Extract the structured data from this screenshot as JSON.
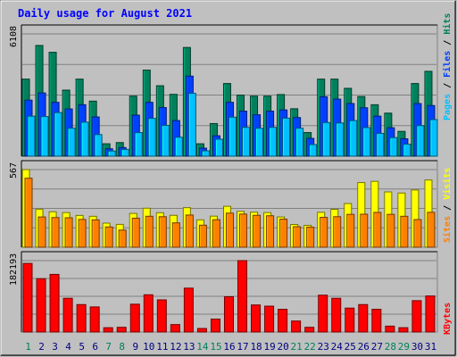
{
  "chart_data": [
    {
      "type": "bar",
      "title": "Daily usage for August 2021",
      "ymax_label": "6108",
      "ymax": 6108,
      "legend": [
        {
          "text": "Hits",
          "color": "#00805c"
        },
        {
          "text": "Files",
          "color": "#0040ff"
        },
        {
          "text": "Pages",
          "color": "#00c0ff"
        }
      ],
      "categories": [
        "1",
        "2",
        "3",
        "4",
        "5",
        "6",
        "7",
        "8",
        "9",
        "10",
        "11",
        "12",
        "13",
        "14",
        "15",
        "16",
        "17",
        "18",
        "19",
        "20",
        "21",
        "22",
        "23",
        "24",
        "25",
        "26",
        "27",
        "28",
        "29",
        "30",
        "31"
      ],
      "weekend_days": [
        "1",
        "7",
        "8",
        "14",
        "15",
        "21",
        "22",
        "28",
        "29"
      ],
      "series": [
        {
          "name": "Hits",
          "color": "#00805c",
          "values": [
            3850,
            5530,
            5190,
            3300,
            3850,
            2750,
            620,
            680,
            3000,
            4300,
            3520,
            3090,
            5430,
            620,
            1630,
            3630,
            3050,
            3000,
            3000,
            3080,
            2370,
            1180,
            3850,
            3850,
            3390,
            2980,
            2570,
            2150,
            1240,
            3630,
            4240
          ]
        },
        {
          "name": "Files",
          "color": "#0040ff",
          "values": [
            2800,
            3160,
            2690,
            2360,
            2570,
            1960,
            370,
            430,
            2050,
            2690,
            2430,
            1780,
            4000,
            400,
            1020,
            2690,
            2250,
            2070,
            2250,
            2310,
            1930,
            890,
            2970,
            2850,
            2630,
            2420,
            2000,
            1420,
            870,
            2630,
            2530
          ]
        },
        {
          "name": "Pages",
          "color": "#00c0ff",
          "values": [
            2000,
            1980,
            2180,
            1400,
            1700,
            1080,
            260,
            340,
            1180,
            1890,
            1540,
            950,
            3140,
            270,
            850,
            1950,
            1440,
            1400,
            1440,
            1900,
            1400,
            580,
            1680,
            1660,
            1780,
            1430,
            1140,
            930,
            600,
            1530,
            1830
          ]
        }
      ]
    },
    {
      "type": "bar",
      "ymax_label": "567",
      "ymax": 567,
      "legend": [
        {
          "text": "Visits",
          "color": "#ffff00"
        },
        {
          "text": "Sites",
          "color": "#ff8000"
        }
      ],
      "categories": [
        "1",
        "2",
        "3",
        "4",
        "5",
        "6",
        "7",
        "8",
        "9",
        "10",
        "11",
        "12",
        "13",
        "14",
        "15",
        "16",
        "17",
        "18",
        "19",
        "20",
        "21",
        "22",
        "23",
        "24",
        "25",
        "26",
        "27",
        "28",
        "29",
        "30",
        "31"
      ],
      "series": [
        {
          "name": "Visits",
          "color": "#ffff00",
          "values": [
            567,
            278,
            259,
            253,
            232,
            226,
            176,
            167,
            247,
            285,
            252,
            233,
            289,
            200,
            227,
            299,
            262,
            256,
            253,
            221,
            166,
            160,
            255,
            277,
            319,
            472,
            481,
            404,
            396,
            418,
            491
          ]
        },
        {
          "name": "Sites",
          "color": "#ff8000",
          "values": [
            504,
            221,
            217,
            215,
            203,
            200,
            148,
            125,
            212,
            226,
            223,
            178,
            235,
            161,
            201,
            249,
            242,
            233,
            230,
            205,
            150,
            147,
            218,
            223,
            240,
            241,
            254,
            240,
            226,
            202,
            255
          ]
        }
      ]
    },
    {
      "type": "bar",
      "ymax_label": "182193",
      "ymax": 182193,
      "legend": [
        {
          "text": "KBytes",
          "color": "#ff0000"
        }
      ],
      "categories": [
        "1",
        "2",
        "3",
        "4",
        "5",
        "6",
        "7",
        "8",
        "9",
        "10",
        "11",
        "12",
        "13",
        "14",
        "15",
        "16",
        "17",
        "18",
        "19",
        "20",
        "21",
        "22",
        "23",
        "24",
        "25",
        "26",
        "27",
        "28",
        "29",
        "30",
        "31"
      ],
      "series": [
        {
          "name": "KBytes",
          "color": "#ff0000",
          "values": [
            175000,
            136000,
            147000,
            86000,
            70000,
            64000,
            11000,
            12000,
            71000,
            95000,
            82000,
            19000,
            112000,
            9000,
            33000,
            90000,
            182193,
            69000,
            66000,
            58000,
            28000,
            12000,
            94000,
            86000,
            61000,
            70000,
            58000,
            15000,
            11000,
            80000,
            92000
          ]
        }
      ]
    }
  ],
  "colors": {
    "outer_bg": "#c0c0c0",
    "plot_bg": "#c0c0c0",
    "title": "#0000ff",
    "weekday_label": "#000080",
    "weekend_label": "#00805c",
    "gridline": "#808080"
  }
}
